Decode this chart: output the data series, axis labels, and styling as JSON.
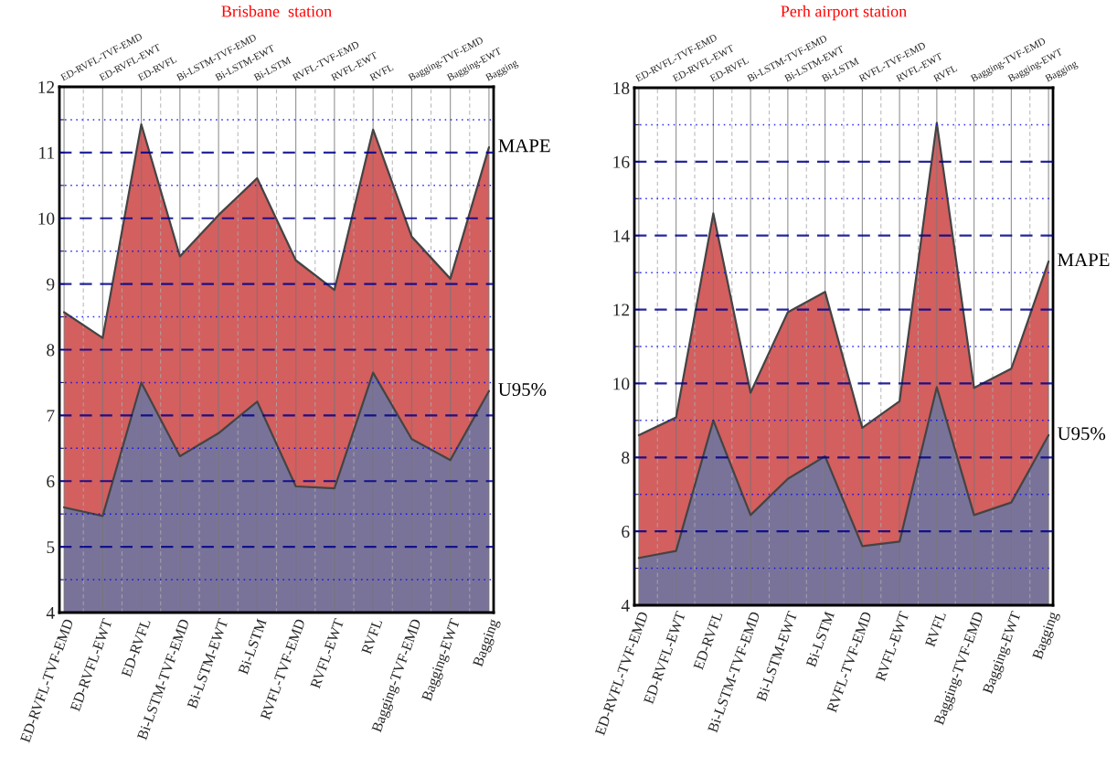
{
  "chart_data": [
    {
      "type": "area",
      "title": "Brisbane  station",
      "categories": [
        "ED-RVFL-TVF-EMD",
        "ED-RVFL-EWT",
        "ED-RVFL",
        "Bi-LSTM-TVF-EMD",
        "Bi-LSTM-EWT",
        "Bi-LSTM",
        "RVFL-TVF-EMD",
        "RVFL-EWT",
        "RVFL",
        "Bagging-TVF-EMD",
        "Bagging-EWT",
        "Bagging"
      ],
      "series": [
        {
          "name": "MAPE",
          "color": "#d35f5f",
          "values": [
            8.57,
            8.18,
            11.43,
            9.42,
            10.05,
            10.61,
            9.36,
            8.91,
            11.35,
            9.72,
            9.08,
            11.08
          ]
        },
        {
          "name": "U95%",
          "color": "#7a7399",
          "values": [
            5.6,
            5.47,
            7.5,
            6.38,
            6.73,
            7.21,
            5.92,
            5.89,
            7.65,
            6.64,
            6.32,
            7.37
          ]
        }
      ],
      "ylim": [
        4,
        12
      ],
      "yticks": [
        4,
        {
          "value": 4.5,
          "label": null
        },
        5,
        {
          "value": 5.5,
          "label": null
        },
        6,
        {
          "value": 6.5,
          "label": null
        },
        7,
        {
          "value": 7.5,
          "label": null
        },
        8,
        {
          "value": 8.5,
          "label": null
        },
        9,
        {
          "value": 9.5,
          "label": null
        },
        10,
        {
          "value": 10.5,
          "label": null
        },
        11,
        {
          "value": 11.5,
          "label": null
        },
        12
      ],
      "grid": true
    },
    {
      "type": "area",
      "title": "Perh airport station",
      "categories": [
        "ED-RVFL-TVF-EMD",
        "ED-RVFL-EWT",
        "ED-RVFL",
        "Bi-LSTM-TVF-EMD",
        "Bi-LSTM-EWT",
        "Bi-LSTM",
        "RVFL-TVF-EMD",
        "RVFL-EWT",
        "RVFL",
        "Bagging-TVF-EMD",
        "Bagging-EWT",
        "Bagging"
      ],
      "series": [
        {
          "name": "MAPE",
          "color": "#d35f5f",
          "values": [
            8.6,
            9.08,
            14.6,
            9.75,
            11.93,
            12.48,
            8.8,
            9.52,
            17.05,
            9.88,
            10.4,
            13.3
          ]
        },
        {
          "name": "U95%",
          "color": "#7a7399",
          "values": [
            5.28,
            5.47,
            9.0,
            6.44,
            7.42,
            8.03,
            5.6,
            5.72,
            9.9,
            6.44,
            6.78,
            8.6
          ]
        }
      ],
      "ylim": [
        4,
        18
      ],
      "yticks": [
        4,
        {
          "value": 5,
          "label": null
        },
        6,
        {
          "value": 7,
          "label": null
        },
        8,
        {
          "value": 9,
          "label": null
        },
        10,
        {
          "value": 11,
          "label": null
        },
        12,
        {
          "value": 13,
          "label": null
        },
        14,
        {
          "value": 15,
          "label": null
        },
        16,
        {
          "value": 17,
          "label": null
        },
        18
      ],
      "grid": true
    }
  ]
}
